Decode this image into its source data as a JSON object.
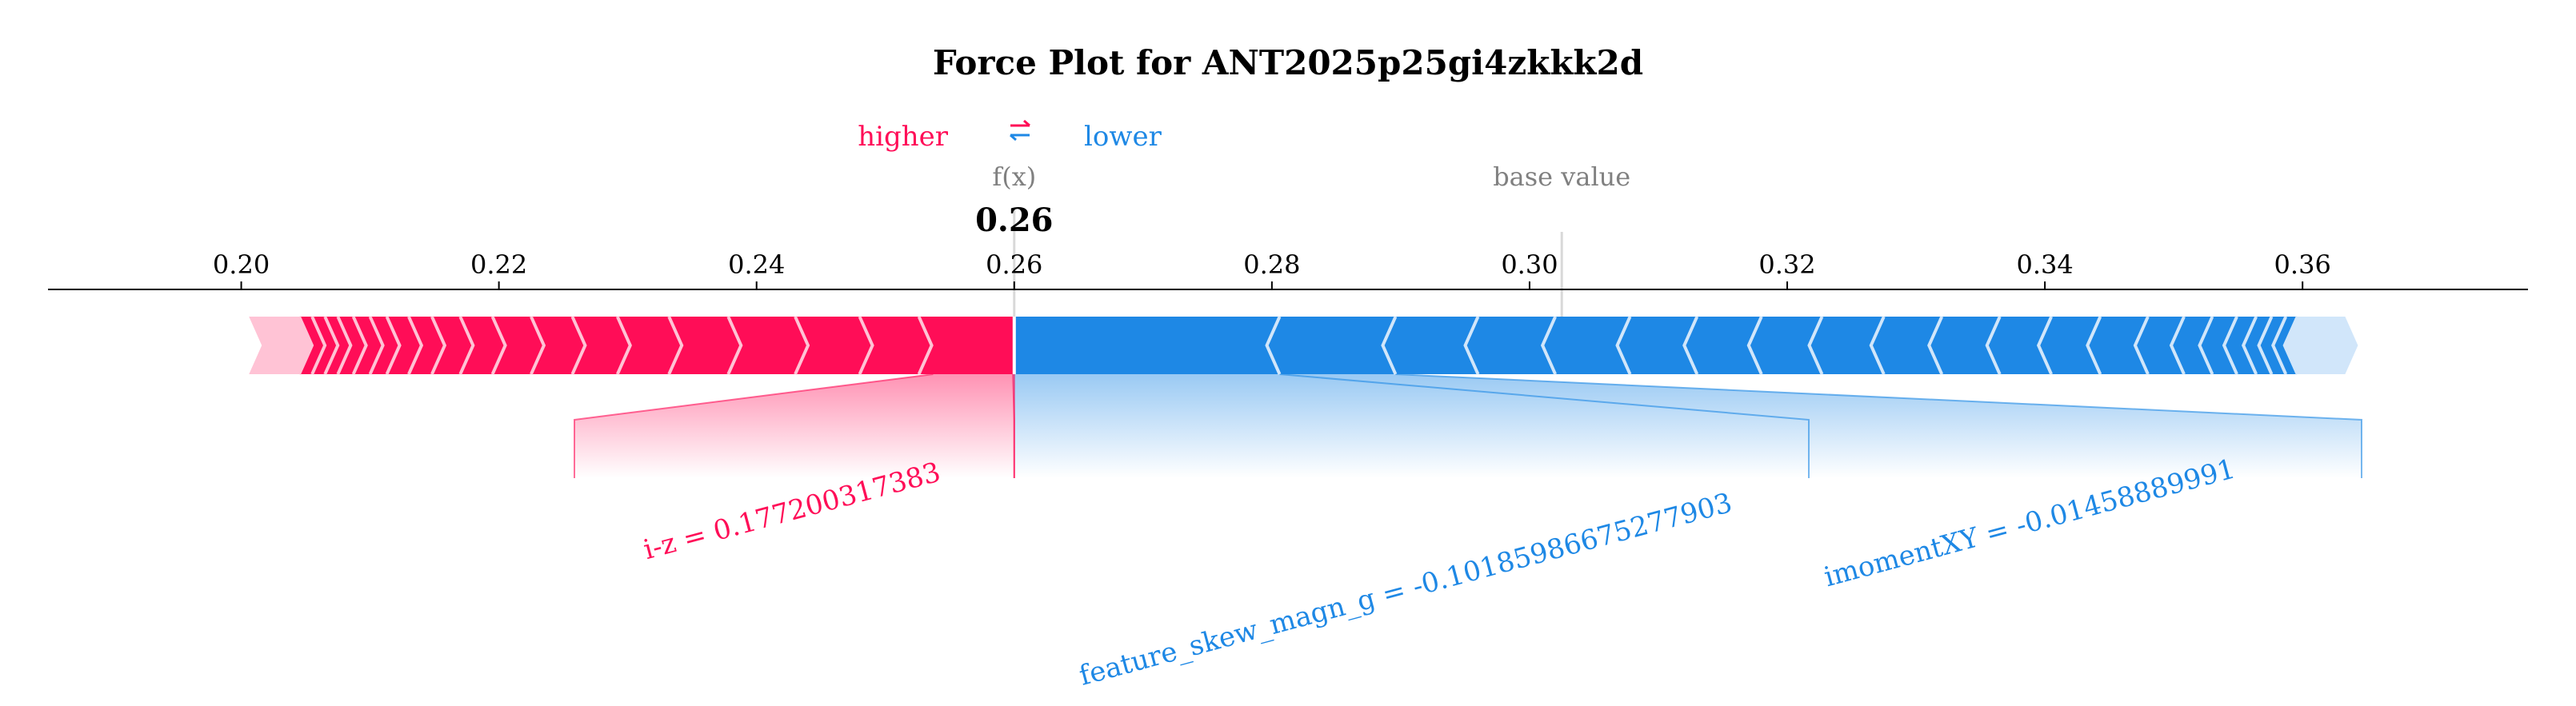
{
  "chart_data": {
    "type": "force",
    "title": "Force Plot for ANT2025p25gi4zkkk2d",
    "legend": {
      "higher": "higher",
      "lower": "lower",
      "icon": "arrows-icon"
    },
    "output_label": "f(x)",
    "output_value": 0.26,
    "output_value_text": "0.26",
    "base_label": "base value",
    "base_value": 0.3025,
    "xlim": [
      0.185,
      0.3775
    ],
    "ticks": [
      0.2,
      0.22,
      0.24,
      0.26,
      0.28,
      0.3,
      0.32,
      0.34,
      0.36
    ],
    "tick_labels": [
      "0.20",
      "0.22",
      "0.24",
      "0.26",
      "0.28",
      "0.30",
      "0.32",
      "0.34",
      "0.36"
    ],
    "positive": {
      "color": "#ff0d57",
      "range": [
        0.2006,
        0.2599
      ],
      "chevrons": [
        0.2045,
        0.2055,
        0.2065,
        0.2075,
        0.2087,
        0.21,
        0.2113,
        0.213,
        0.2148,
        0.217,
        0.2195,
        0.2225,
        0.2257,
        0.2292,
        0.2332,
        0.2378,
        0.243,
        0.248,
        0.2526
      ],
      "labeled": [
        {
          "label": "i-z = 0.177200317383",
          "start": 0.2537,
          "end": 0.2599
        }
      ]
    },
    "negative": {
      "color": "#1e88e5",
      "range": [
        0.2599,
        0.3643
      ],
      "chevrons": [
        0.2806,
        0.2896,
        0.296,
        0.302,
        0.3078,
        0.313,
        0.318,
        0.3227,
        0.3275,
        0.332,
        0.3365,
        0.3405,
        0.3443,
        0.348,
        0.3508,
        0.353,
        0.3549,
        0.3564,
        0.3576,
        0.3587,
        0.3596
      ],
      "labeled": [
        {
          "label": "feature_skew_magn_g = -0.10185986675277903",
          "start": 0.2599,
          "end": 0.2806
        },
        {
          "label": "imomentXY = -0.01458889991",
          "start": 0.2806,
          "end": 0.2896
        }
      ]
    }
  }
}
